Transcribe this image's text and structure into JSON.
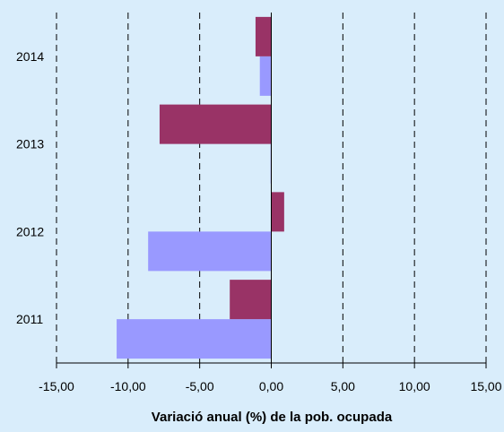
{
  "chart_data": {
    "type": "bar",
    "orientation": "horizontal",
    "title": "",
    "xlabel": "Variació anual (%) de la pob. ocupada",
    "ylabel": "",
    "categories": [
      "2011",
      "2012",
      "2013",
      "2014"
    ],
    "series": [
      {
        "color": "#9999ff",
        "values": [
          -10.8,
          -8.6,
          -0.05,
          -0.8
        ]
      },
      {
        "color": "#993366",
        "values": [
          -2.9,
          0.9,
          -7.8,
          -1.1
        ]
      }
    ],
    "xlim": [
      -15,
      15
    ],
    "x_ticks": [
      -15,
      -10,
      -5,
      0,
      5,
      10,
      15
    ],
    "x_tick_labels": [
      "-15,00",
      "-10,00",
      "-5,00",
      "0,00",
      "5,00",
      "10,00",
      "15,00"
    ],
    "grid": "vertical dashed",
    "background": "#d9edfb",
    "legend": "none"
  }
}
